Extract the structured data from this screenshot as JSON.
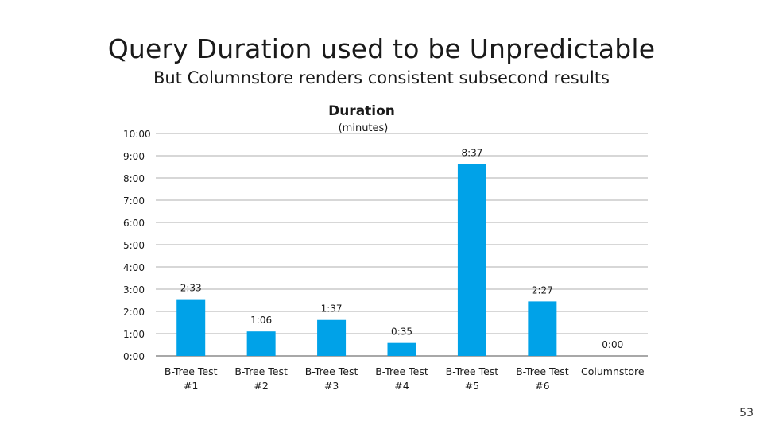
{
  "slide": {
    "title": "Query Duration used to be Unpredictable",
    "subtitle": "But Columnstore renders consistent subsecond results",
    "page_number": "53"
  },
  "colors": {
    "bar": "#00A2E8",
    "gridline": "#BFBFBF",
    "axis": "#8C8C8C",
    "text": "#1A1A1A"
  },
  "chart_data": {
    "type": "bar",
    "title": "Duration",
    "subtitle": "(minutes)",
    "categories": [
      [
        "B-Tree Test",
        "#1"
      ],
      [
        "B-Tree Test",
        "#2"
      ],
      [
        "B-Tree Test",
        "#3"
      ],
      [
        "B-Tree Test",
        "#4"
      ],
      [
        "B-Tree Test",
        "#5"
      ],
      [
        "B-Tree Test",
        "#6"
      ],
      [
        "Columnstore"
      ]
    ],
    "values": [
      2.55,
      1.1,
      1.6167,
      0.5833,
      8.6167,
      2.45,
      0
    ],
    "data_labels": [
      "2:33",
      "1:06",
      "1:37",
      "0:35",
      "8:37",
      "2:27",
      "0:00"
    ],
    "y_ticks": [
      0,
      1,
      2,
      3,
      4,
      5,
      6,
      7,
      8,
      9,
      10
    ],
    "y_tick_labels": [
      "0:00",
      "1:00",
      "2:00",
      "3:00",
      "4:00",
      "5:00",
      "6:00",
      "7:00",
      "8:00",
      "9:00",
      "10:00"
    ],
    "ylim": [
      0,
      10
    ],
    "grid": true,
    "legend": "none"
  }
}
